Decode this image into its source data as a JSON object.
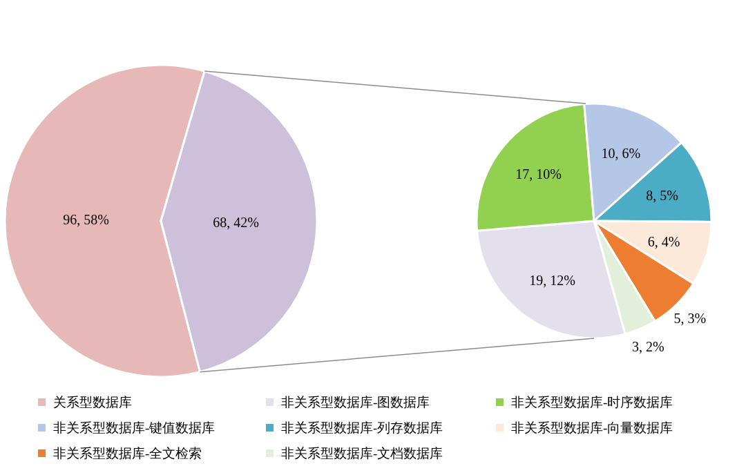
{
  "chart_data": [
    {
      "type": "pie",
      "categories": [
        "关系型数据库",
        null
      ],
      "values": [
        96,
        68
      ],
      "colors": [
        "#e6b8b7",
        "#ccc0da"
      ],
      "value_labels": [
        "96, 58%",
        "68, 42%"
      ],
      "legend": "bottom"
    },
    {
      "type": "pie",
      "categories": [
        "非关系型数据库-图数据库",
        "非关系型数据库-时序数据库",
        "非关系型数据库-键值数据库",
        "非关系型数据库-列存数据库",
        "非关系型数据库-向量数据库",
        "非关系型数据库-全文检索",
        "非关系型数据库-文档数据库"
      ],
      "values": [
        19,
        17,
        10,
        8,
        6,
        5,
        3
      ],
      "colors": [
        "#e4dfec",
        "#92d050",
        "#b4c7e7",
        "#4bacc6",
        "#fde9d9",
        "#ed7d31",
        "#e2efda"
      ],
      "value_labels": [
        "19, 12%",
        "17, 10%",
        "10, 6%",
        "8, 5%",
        "6, 4%",
        "5, 3%",
        "3, 2%"
      ],
      "legend": "bottom"
    }
  ]
}
